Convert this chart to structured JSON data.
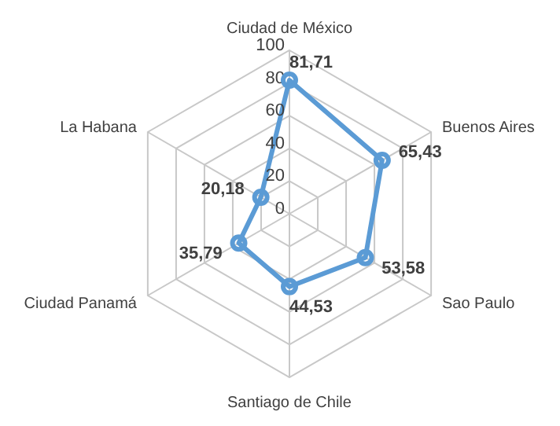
{
  "chart_data": {
    "type": "radar",
    "categories": [
      "Ciudad de México",
      "Buenos Aires",
      "Sao Paulo",
      "Santiago de Chile",
      "Ciudad Panamá",
      "La Habana"
    ],
    "series": [
      {
        "color": "#5b9bd5",
        "values": [
          81.71,
          65.43,
          53.58,
          44.53,
          35.79,
          20.18
        ],
        "value_labels": [
          "81,71",
          "65,43",
          "53,58",
          "44,53",
          "35,79",
          "20,18"
        ]
      }
    ],
    "ylim": [
      0,
      100
    ],
    "yticks": [
      0,
      20,
      40,
      60,
      80,
      100
    ],
    "grid": true,
    "marker": "circle",
    "line_style": "solid",
    "legend": false
  }
}
